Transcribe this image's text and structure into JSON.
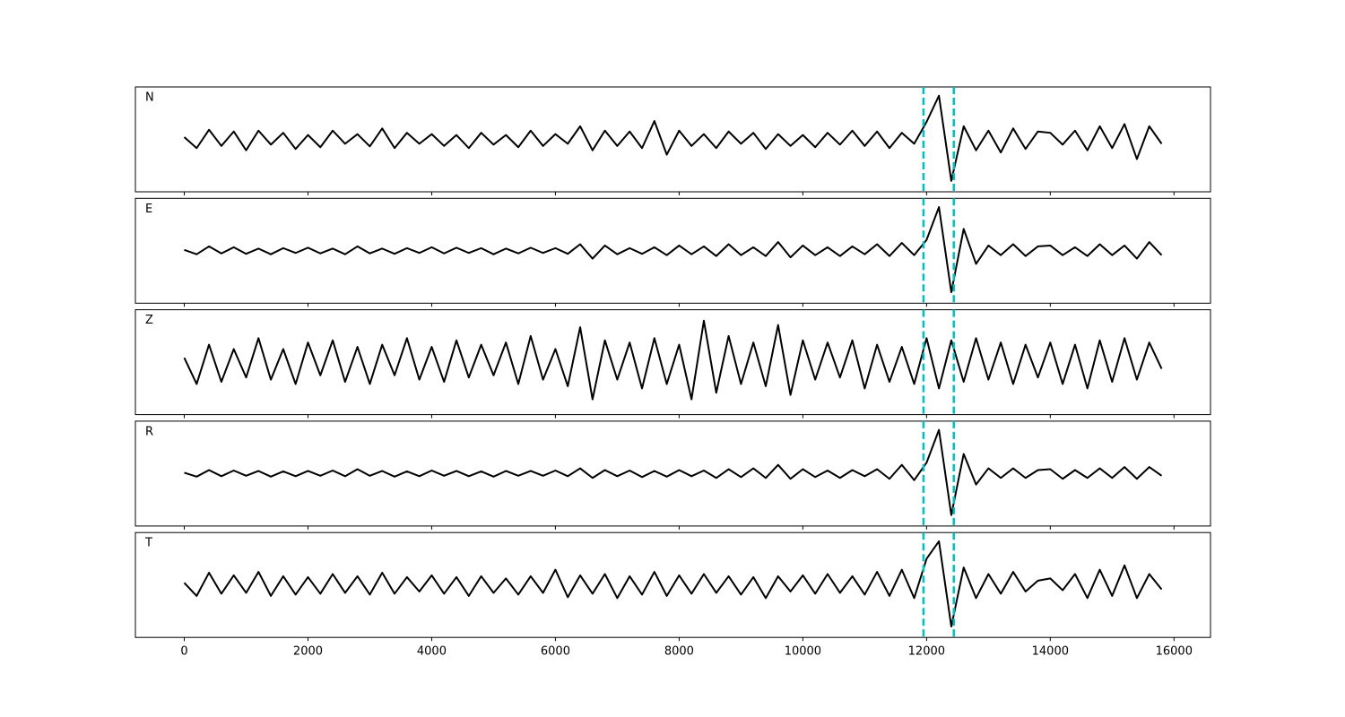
{
  "chart_data": {
    "type": "line",
    "x": [
      0,
      200,
      400,
      600,
      800,
      1000,
      1200,
      1400,
      1600,
      1800,
      2000,
      2200,
      2400,
      2600,
      2800,
      3000,
      3200,
      3400,
      3600,
      3800,
      4000,
      4200,
      4400,
      4600,
      4800,
      5000,
      5200,
      5400,
      5600,
      5800,
      6000,
      6200,
      6400,
      6600,
      6800,
      7000,
      7200,
      7400,
      7600,
      7800,
      8000,
      8200,
      8400,
      8600,
      8800,
      9000,
      9200,
      9400,
      9600,
      9800,
      10000,
      10200,
      10400,
      10600,
      10800,
      11000,
      11200,
      11400,
      11600,
      11800,
      12000,
      12200,
      12400,
      12600,
      12800,
      13000,
      13200,
      13400,
      13600,
      13800,
      14000,
      14200,
      14400,
      14600,
      14800,
      15000,
      15200,
      15400,
      15600,
      15800
    ],
    "series": [
      {
        "name": "N",
        "color": "#000000",
        "values": [
          0.05,
          -0.2,
          0.22,
          -0.15,
          0.18,
          -0.25,
          0.2,
          -0.12,
          0.15,
          -0.22,
          0.1,
          -0.18,
          0.2,
          -0.1,
          0.12,
          -0.16,
          0.25,
          -0.2,
          0.15,
          -0.1,
          0.12,
          -0.15,
          0.1,
          -0.2,
          0.15,
          -0.12,
          0.1,
          -0.18,
          0.2,
          -0.15,
          0.12,
          -0.1,
          0.3,
          -0.25,
          0.2,
          -0.15,
          0.18,
          -0.2,
          0.42,
          -0.35,
          0.2,
          -0.15,
          0.12,
          -0.2,
          0.18,
          -0.1,
          0.15,
          -0.22,
          0.12,
          -0.15,
          0.1,
          -0.18,
          0.15,
          -0.12,
          0.2,
          -0.15,
          0.18,
          -0.2,
          0.15,
          -0.1,
          0.4,
          1.0,
          -0.95,
          0.3,
          -0.25,
          0.2,
          -0.3,
          0.25,
          -0.22,
          0.18,
          0.15,
          -0.12,
          0.2,
          -0.25,
          0.3,
          -0.2,
          0.35,
          -0.45,
          0.3,
          -0.1
        ]
      },
      {
        "name": "E",
        "color": "#000000",
        "values": [
          0.02,
          -0.08,
          0.1,
          -0.06,
          0.08,
          -0.07,
          0.05,
          -0.08,
          0.06,
          -0.05,
          0.07,
          -0.06,
          0.05,
          -0.08,
          0.1,
          -0.06,
          0.05,
          -0.07,
          0.06,
          -0.05,
          0.08,
          -0.06,
          0.07,
          -0.05,
          0.06,
          -0.08,
          0.05,
          -0.06,
          0.07,
          -0.05,
          0.06,
          -0.07,
          0.15,
          -0.18,
          0.12,
          -0.08,
          0.06,
          -0.07,
          0.08,
          -0.1,
          0.12,
          -0.08,
          0.1,
          -0.12,
          0.15,
          -0.1,
          0.08,
          -0.12,
          0.2,
          -0.15,
          0.12,
          -0.1,
          0.08,
          -0.12,
          0.1,
          -0.08,
          0.15,
          -0.12,
          0.18,
          -0.1,
          0.25,
          1.0,
          -0.95,
          0.5,
          -0.3,
          0.12,
          -0.1,
          0.15,
          -0.12,
          0.1,
          0.12,
          -0.1,
          0.08,
          -0.12,
          0.15,
          -0.1,
          0.12,
          -0.18,
          0.2,
          -0.1
        ]
      },
      {
        "name": "Z",
        "color": "#000000",
        "values": [
          0.1,
          -0.5,
          0.4,
          -0.45,
          0.3,
          -0.35,
          0.55,
          -0.4,
          0.3,
          -0.5,
          0.45,
          -0.3,
          0.5,
          -0.45,
          0.35,
          -0.5,
          0.4,
          -0.3,
          0.55,
          -0.4,
          0.35,
          -0.45,
          0.5,
          -0.35,
          0.4,
          -0.3,
          0.45,
          -0.5,
          0.6,
          -0.4,
          0.3,
          -0.55,
          0.8,
          -0.85,
          0.5,
          -0.4,
          0.45,
          -0.6,
          0.55,
          -0.5,
          0.4,
          -0.85,
          0.95,
          -0.7,
          0.6,
          -0.5,
          0.45,
          -0.55,
          0.85,
          -0.75,
          0.5,
          -0.4,
          0.45,
          -0.35,
          0.5,
          -0.6,
          0.4,
          -0.45,
          0.35,
          -0.5,
          0.55,
          -0.6,
          0.5,
          -0.45,
          0.55,
          -0.4,
          0.45,
          -0.5,
          0.4,
          -0.35,
          0.45,
          -0.5,
          0.4,
          -0.6,
          0.5,
          -0.45,
          0.55,
          -0.4,
          0.45,
          -0.15
        ]
      },
      {
        "name": "R",
        "color": "#000000",
        "values": [
          0.02,
          -0.07,
          0.08,
          -0.06,
          0.07,
          -0.05,
          0.06,
          -0.07,
          0.05,
          -0.06,
          0.06,
          -0.05,
          0.07,
          -0.06,
          0.1,
          -0.05,
          0.06,
          -0.07,
          0.05,
          -0.06,
          0.07,
          -0.05,
          0.06,
          -0.06,
          0.05,
          -0.07,
          0.06,
          -0.05,
          0.06,
          -0.05,
          0.07,
          -0.06,
          0.12,
          -0.1,
          0.08,
          -0.06,
          0.07,
          -0.08,
          0.06,
          -0.07,
          0.08,
          -0.06,
          0.07,
          -0.1,
          0.1,
          -0.08,
          0.12,
          -0.1,
          0.2,
          -0.12,
          0.1,
          -0.08,
          0.07,
          -0.1,
          0.08,
          -0.06,
          0.1,
          -0.12,
          0.2,
          -0.15,
          0.25,
          1.0,
          -0.95,
          0.45,
          -0.25,
          0.12,
          -0.1,
          0.12,
          -0.1,
          0.08,
          0.1,
          -0.12,
          0.08,
          -0.1,
          0.12,
          -0.1,
          0.15,
          -0.12,
          0.15,
          -0.05
        ]
      },
      {
        "name": "T",
        "color": "#000000",
        "values": [
          0.05,
          -0.25,
          0.28,
          -0.2,
          0.22,
          -0.18,
          0.3,
          -0.25,
          0.2,
          -0.22,
          0.18,
          -0.2,
          0.25,
          -0.18,
          0.2,
          -0.22,
          0.28,
          -0.2,
          0.18,
          -0.15,
          0.22,
          -0.2,
          0.18,
          -0.25,
          0.2,
          -0.18,
          0.15,
          -0.22,
          0.2,
          -0.18,
          0.35,
          -0.28,
          0.22,
          -0.2,
          0.25,
          -0.3,
          0.2,
          -0.22,
          0.3,
          -0.25,
          0.22,
          -0.2,
          0.25,
          -0.18,
          0.2,
          -0.22,
          0.18,
          -0.3,
          0.2,
          -0.15,
          0.22,
          -0.2,
          0.25,
          -0.18,
          0.2,
          -0.22,
          0.3,
          -0.25,
          0.35,
          -0.3,
          0.6,
          1.0,
          -0.95,
          0.4,
          -0.3,
          0.25,
          -0.2,
          0.3,
          -0.15,
          0.1,
          0.15,
          -0.12,
          0.25,
          -0.3,
          0.35,
          -0.25,
          0.45,
          -0.3,
          0.25,
          -0.1
        ]
      }
    ],
    "xlim": [
      -790,
      16590
    ],
    "xticks": [
      0,
      2000,
      4000,
      6000,
      8000,
      10000,
      12000,
      14000,
      16000
    ],
    "ylim": [
      -1.2,
      1.2
    ],
    "vlines": [
      11950,
      12440
    ],
    "vline_color": "#00bfbf"
  }
}
